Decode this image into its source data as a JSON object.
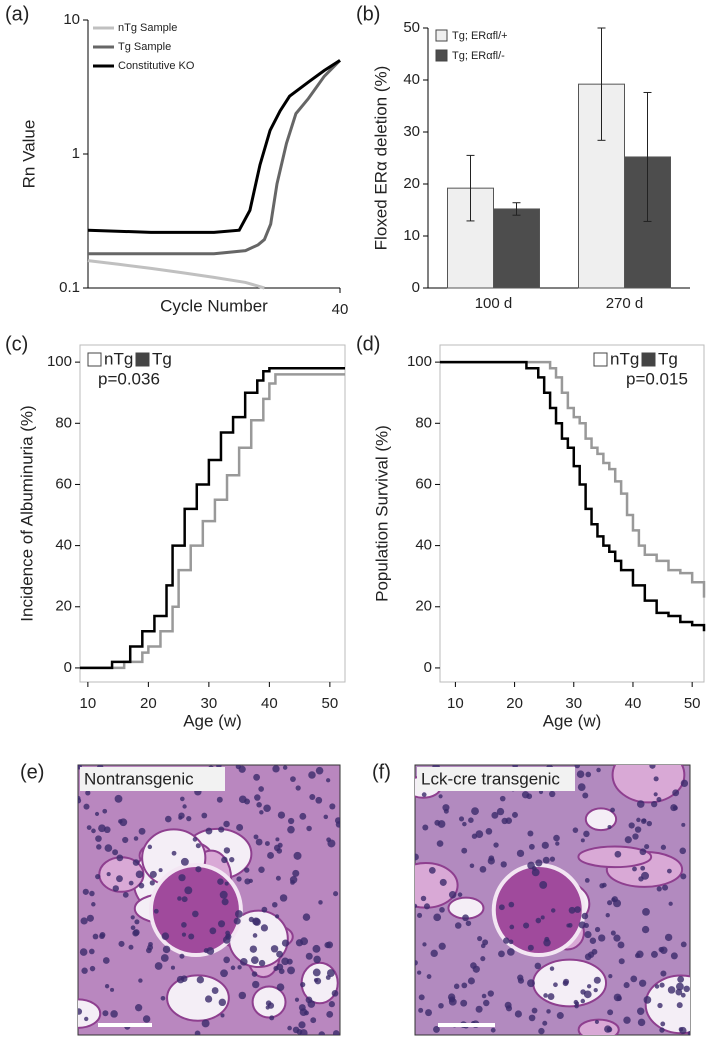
{
  "chart_data": [
    {
      "type": "line",
      "panel_label": "(a)",
      "ylog": true,
      "y_label": "Rn Value",
      "x_label": "Cycle Number",
      "xlim": [
        0,
        40
      ],
      "xticks": [
        40
      ],
      "ylim": [
        0.1,
        10
      ],
      "yticks": [
        10,
        1,
        0.1
      ],
      "legend": "upper left",
      "series": [
        {
          "name": "nTg Sample",
          "color": "#c0c0c0",
          "x": [
            0,
            5,
            10,
            15,
            20,
            25,
            28
          ],
          "values": [
            0.16,
            0.15,
            0.14,
            0.13,
            0.12,
            0.11,
            0.1
          ]
        },
        {
          "name": "Tg Sample",
          "color": "#666666",
          "x": [
            0,
            10,
            20,
            25,
            27,
            28,
            29,
            30,
            31.5,
            33,
            35,
            37.5,
            40
          ],
          "values": [
            0.18,
            0.18,
            0.18,
            0.19,
            0.21,
            0.23,
            0.3,
            0.6,
            1.2,
            2,
            2.6,
            3.8,
            5
          ]
        },
        {
          "name": "Constitutive KO",
          "color": "#000000",
          "x": [
            0,
            10,
            20,
            24,
            25.7,
            27.3,
            28.9,
            30.5,
            32,
            35.2,
            37.5,
            40
          ],
          "values": [
            0.27,
            0.26,
            0.26,
            0.27,
            0.38,
            0.83,
            1.5,
            2.1,
            2.7,
            3.5,
            4.2,
            5
          ]
        }
      ]
    },
    {
      "type": "bar",
      "panel_label": "(b)",
      "y_label": "Floxed ERα  deletion (%)",
      "categories": [
        "100 d",
        "270 d"
      ],
      "ylim": [
        0,
        50
      ],
      "yticks": [
        0,
        10,
        20,
        30,
        40,
        50
      ],
      "legend": "upper left",
      "series": [
        {
          "name": "Tg; ERαfl/+",
          "color": "#efefef",
          "values": [
            19.2,
            39.2
          ],
          "errors": [
            6.3,
            10.8
          ]
        },
        {
          "name": "Tg; ERαfl/-",
          "color": "#4d4d4d",
          "values": [
            15.2,
            25.2
          ],
          "errors": [
            1.2,
            12.4
          ]
        }
      ]
    },
    {
      "type": "step",
      "panel_label": "(c)",
      "y_label": "Incidence of Albuminuria (%)",
      "x_label": "Age (w)",
      "annotation": "p=0.036",
      "xlim": [
        8.7,
        52.5
      ],
      "xticks": [
        10,
        20,
        30,
        40,
        50
      ],
      "ylim": [
        -4.6,
        105.6
      ],
      "yticks": [
        0,
        20,
        40,
        60,
        80,
        100
      ],
      "legend": "upper left",
      "series": [
        {
          "name": "nTg",
          "color": "#999999",
          "x": [
            8.7,
            16,
            19,
            20,
            22,
            24,
            25,
            27,
            29,
            31,
            33,
            35,
            37,
            39,
            40,
            41,
            52.5
          ],
          "values": [
            0,
            2,
            5,
            7,
            12,
            20,
            32,
            40,
            48,
            55,
            63,
            72,
            81,
            88,
            93,
            96,
            96
          ]
        },
        {
          "name": "Tg",
          "color": "#000000",
          "x": [
            8.7,
            14,
            17,
            19,
            21,
            23,
            24,
            26,
            28,
            30,
            32,
            34,
            36,
            38,
            39,
            40,
            52.5
          ],
          "values": [
            0,
            2,
            7,
            12,
            17,
            27,
            40,
            52,
            60,
            68,
            77,
            82,
            90,
            94,
            97,
            98,
            98
          ]
        }
      ]
    },
    {
      "type": "step",
      "panel_label": "(d)",
      "y_label": "Population Survival (%)",
      "x_label": "Age (w)",
      "annotation": "p=0.015",
      "xlim": [
        7.4,
        52
      ],
      "xticks": [
        10,
        20,
        30,
        40,
        50
      ],
      "ylim": [
        -4.6,
        105.6
      ],
      "yticks": [
        0,
        20,
        40,
        60,
        80,
        100
      ],
      "legend": "upper right",
      "series": [
        {
          "name": "nTg",
          "color": "#999999",
          "x": [
            7.4,
            24,
            26,
            27,
            28,
            29,
            30,
            31,
            32,
            33,
            34,
            35,
            36,
            37,
            38,
            39,
            40,
            41,
            42,
            44,
            46,
            48,
            50,
            52
          ],
          "values": [
            100,
            100,
            98,
            95,
            90,
            85,
            82,
            80,
            75,
            72,
            70,
            67,
            65,
            61,
            57,
            50,
            45,
            40,
            37,
            35,
            32,
            31,
            28,
            23
          ]
        },
        {
          "name": "Tg",
          "color": "#000000",
          "x": [
            7.4,
            20,
            22,
            24,
            25,
            26,
            27,
            28,
            29,
            30,
            31,
            32,
            33,
            34,
            35,
            36,
            37,
            38,
            40,
            42,
            44,
            46,
            48,
            50,
            52
          ],
          "values": [
            100,
            100,
            98,
            95,
            90,
            85,
            80,
            75,
            72,
            66,
            60,
            52,
            47,
            43,
            40,
            38,
            35,
            32,
            27,
            22,
            18,
            17,
            15,
            14,
            12
          ]
        }
      ]
    }
  ],
  "images": [
    {
      "panel_label": "(e)",
      "caption": "Nontransgenic"
    },
    {
      "panel_label": "(f)",
      "caption": "Lck-cre transgenic"
    }
  ]
}
